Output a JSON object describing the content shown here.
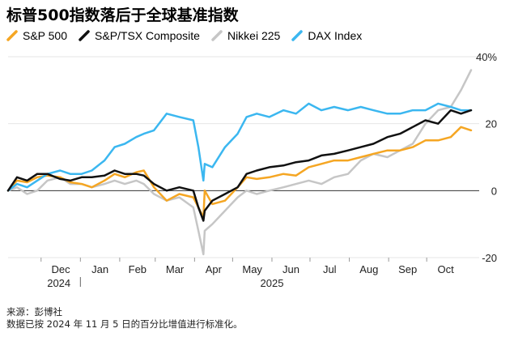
{
  "title": "标普500指数落后于全球基准指数",
  "footer": {
    "source": "来源：彭博社",
    "note": "数据已按 2024 年 11 月 5 日的百分比增值进行标准化。"
  },
  "chart_data": {
    "type": "line",
    "title": "标普500指数落后于全球基准指数",
    "ylabel": "",
    "xlabel": "",
    "ylim": [
      -20,
      40
    ],
    "y_ticks": [
      {
        "value": 40,
        "label": "40%"
      },
      {
        "value": 20,
        "label": "20"
      },
      {
        "value": 0,
        "label": "0"
      },
      {
        "value": -20,
        "label": "-20"
      }
    ],
    "x_ticks": [
      "Dec",
      "Jan",
      "Feb",
      "Mar",
      "Apr",
      "May",
      "Jun",
      "Jul",
      "Aug",
      "Sep",
      "Oct"
    ],
    "year_labels": [
      "2024",
      "2025"
    ],
    "x_range": [
      "2024-11-05",
      "2025-11-05"
    ],
    "grid": "horizontal (zero line emphasized)",
    "legend_position": "top",
    "series": [
      {
        "name": "S&P 500",
        "color": "#f5a623",
        "dates": [
          "2024-11-05",
          "2024-11-12",
          "2024-11-20",
          "2024-11-28",
          "2024-12-06",
          "2024-12-16",
          "2024-12-24",
          "2025-01-02",
          "2025-01-10",
          "2025-01-20",
          "2025-01-28",
          "2025-02-05",
          "2025-02-14",
          "2025-02-20",
          "2025-02-28",
          "2025-03-10",
          "2025-03-20",
          "2025-03-31",
          "2025-04-04",
          "2025-04-08",
          "2025-04-09",
          "2025-04-15",
          "2025-04-25",
          "2025-05-05",
          "2025-05-12",
          "2025-05-20",
          "2025-05-30",
          "2025-06-10",
          "2025-06-20",
          "2025-06-30",
          "2025-07-10",
          "2025-07-20",
          "2025-07-31",
          "2025-08-10",
          "2025-08-20",
          "2025-08-31",
          "2025-09-10",
          "2025-09-20",
          "2025-09-30",
          "2025-10-10",
          "2025-10-20",
          "2025-10-28",
          "2025-11-05"
        ],
        "values": [
          0,
          3,
          2.5,
          4,
          4.5,
          4,
          2.5,
          2,
          1,
          3,
          5,
          4,
          5.5,
          6,
          1,
          -3,
          -1,
          -2,
          -5,
          -8,
          0,
          -4,
          -3,
          1,
          4,
          3.5,
          4,
          5,
          4.5,
          7,
          8,
          9,
          9,
          10,
          11,
          12,
          12,
          13,
          15,
          15,
          16,
          19,
          18
        ]
      },
      {
        "name": "S&P/TSX Composite",
        "color": "#111111",
        "dates": [
          "2024-11-05",
          "2024-11-12",
          "2024-11-20",
          "2024-11-28",
          "2024-12-06",
          "2024-12-16",
          "2024-12-24",
          "2025-01-02",
          "2025-01-10",
          "2025-01-20",
          "2025-01-28",
          "2025-02-05",
          "2025-02-14",
          "2025-02-20",
          "2025-02-28",
          "2025-03-10",
          "2025-03-20",
          "2025-03-31",
          "2025-04-04",
          "2025-04-08",
          "2025-04-09",
          "2025-04-15",
          "2025-04-25",
          "2025-05-05",
          "2025-05-12",
          "2025-05-20",
          "2025-05-30",
          "2025-06-10",
          "2025-06-20",
          "2025-06-30",
          "2025-07-10",
          "2025-07-20",
          "2025-07-31",
          "2025-08-10",
          "2025-08-20",
          "2025-08-31",
          "2025-09-10",
          "2025-09-20",
          "2025-09-30",
          "2025-10-10",
          "2025-10-20",
          "2025-10-28",
          "2025-11-05"
        ],
        "values": [
          0,
          4,
          3,
          5,
          5,
          3.5,
          3,
          4,
          4,
          4.5,
          6,
          5,
          5,
          4.5,
          2,
          0,
          1,
          0,
          -5,
          -9,
          -6,
          -3,
          -1,
          1,
          5,
          6,
          7,
          7.5,
          8.5,
          9,
          10.5,
          11,
          12,
          13,
          14,
          16,
          17,
          19,
          21,
          20,
          24,
          23,
          24
        ]
      },
      {
        "name": "Nikkei 225",
        "color": "#c6c6c6",
        "dates": [
          "2024-11-05",
          "2024-11-12",
          "2024-11-20",
          "2024-11-28",
          "2024-12-06",
          "2024-12-16",
          "2024-12-24",
          "2025-01-02",
          "2025-01-10",
          "2025-01-20",
          "2025-01-28",
          "2025-02-05",
          "2025-02-14",
          "2025-02-20",
          "2025-02-28",
          "2025-03-10",
          "2025-03-20",
          "2025-03-31",
          "2025-04-04",
          "2025-04-08",
          "2025-04-09",
          "2025-04-15",
          "2025-04-25",
          "2025-05-05",
          "2025-05-12",
          "2025-05-20",
          "2025-05-30",
          "2025-06-10",
          "2025-06-20",
          "2025-06-30",
          "2025-07-10",
          "2025-07-20",
          "2025-07-31",
          "2025-08-10",
          "2025-08-20",
          "2025-08-31",
          "2025-09-10",
          "2025-09-20",
          "2025-09-30",
          "2025-10-10",
          "2025-10-20",
          "2025-10-28",
          "2025-11-05"
        ],
        "values": [
          0,
          1,
          -1,
          0,
          3,
          4,
          2,
          2,
          1,
          2,
          3,
          2,
          3,
          2,
          -1,
          -3,
          -2,
          -5,
          -12,
          -19,
          -12,
          -10,
          -6,
          -2,
          0,
          -1,
          0,
          1,
          2,
          3,
          2,
          4,
          5,
          9,
          11,
          10,
          12,
          14,
          20,
          24,
          25,
          30,
          36
        ]
      },
      {
        "name": "DAX Index",
        "color": "#3bb7f0",
        "dates": [
          "2024-11-05",
          "2024-11-12",
          "2024-11-20",
          "2024-11-28",
          "2024-12-06",
          "2024-12-16",
          "2024-12-24",
          "2025-01-02",
          "2025-01-10",
          "2025-01-20",
          "2025-01-28",
          "2025-02-05",
          "2025-02-14",
          "2025-02-20",
          "2025-02-28",
          "2025-03-10",
          "2025-03-20",
          "2025-03-31",
          "2025-04-04",
          "2025-04-08",
          "2025-04-09",
          "2025-04-15",
          "2025-04-25",
          "2025-05-05",
          "2025-05-12",
          "2025-05-20",
          "2025-05-30",
          "2025-06-10",
          "2025-06-20",
          "2025-06-30",
          "2025-07-10",
          "2025-07-20",
          "2025-07-31",
          "2025-08-10",
          "2025-08-20",
          "2025-08-31",
          "2025-09-10",
          "2025-09-20",
          "2025-09-30",
          "2025-10-10",
          "2025-10-20",
          "2025-10-28",
          "2025-11-05"
        ],
        "values": [
          0,
          2,
          1,
          3,
          5,
          6,
          5,
          5,
          6,
          9,
          13,
          14,
          16,
          17,
          18,
          23,
          22,
          21,
          13,
          3,
          8,
          7,
          13,
          17,
          22,
          23,
          22,
          24,
          23,
          26,
          24,
          25,
          24,
          25,
          24,
          23,
          23,
          24,
          24,
          26,
          25,
          24,
          24
        ]
      }
    ]
  }
}
